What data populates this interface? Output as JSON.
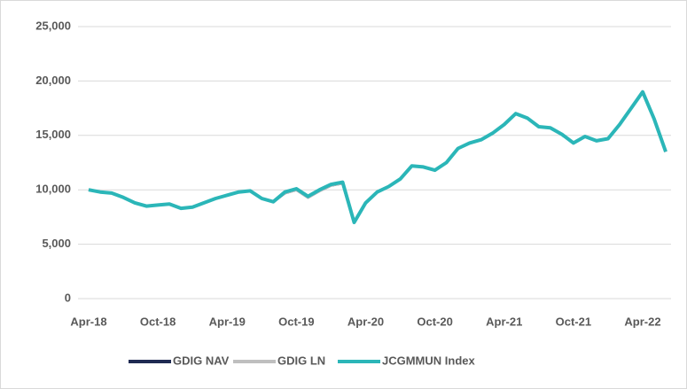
{
  "chart_data": {
    "type": "line",
    "categories": [
      "Apr-18",
      null,
      null,
      null,
      null,
      null,
      "Oct-18",
      null,
      null,
      null,
      null,
      null,
      "Apr-19",
      null,
      null,
      null,
      null,
      null,
      "Oct-19",
      null,
      null,
      null,
      null,
      null,
      "Apr-20",
      null,
      null,
      null,
      null,
      null,
      "Oct-20",
      null,
      null,
      null,
      null,
      null,
      "Apr-21",
      null,
      null,
      null,
      null,
      null,
      "Oct-21",
      null,
      null,
      null,
      null,
      null,
      "Apr-22",
      null,
      null
    ],
    "series": [
      {
        "name": "GDIG NAV",
        "color": "#1f2a52",
        "values": [
          10000,
          9800,
          9700,
          9300,
          8800,
          8500,
          8600,
          8700,
          8300,
          8400,
          8800,
          9200,
          9500,
          9800,
          9900,
          9200,
          8900,
          9700,
          10000,
          9300,
          9900,
          10400,
          10600,
          7000,
          8800,
          9800,
          10300,
          11000,
          12200,
          12100,
          11800,
          12500,
          13800,
          14300,
          14600,
          15200,
          16000,
          17000,
          16600,
          15800,
          15700,
          15100,
          14300,
          14900,
          14500,
          14700,
          16000,
          17500,
          19000,
          16500,
          13500
        ]
      },
      {
        "name": "GDIG LN",
        "color": "#bfbfbf",
        "values": [
          10000,
          9800,
          9700,
          9300,
          8800,
          8500,
          8600,
          8700,
          8300,
          8400,
          8800,
          9200,
          9500,
          9800,
          9900,
          9200,
          8900,
          9700,
          10000,
          9300,
          9900,
          10400,
          10600,
          7000,
          8800,
          9800,
          10300,
          11000,
          12200,
          12100,
          11800,
          12500,
          13800,
          14300,
          14600,
          15200,
          16000,
          17000,
          16600,
          15800,
          15700,
          15100,
          14300,
          14900,
          14500,
          14700,
          16000,
          17500,
          19000,
          16500,
          13500
        ]
      },
      {
        "name": "JCGMMUN Index",
        "color": "#2bb6b8",
        "values": [
          10000,
          9800,
          9700,
          9300,
          8800,
          8500,
          8600,
          8700,
          8300,
          8400,
          8800,
          9200,
          9500,
          9800,
          9900,
          9200,
          8900,
          9800,
          10100,
          9400,
          10000,
          10500,
          10700,
          7000,
          8800,
          9800,
          10300,
          11000,
          12200,
          12100,
          11800,
          12500,
          13800,
          14300,
          14600,
          15200,
          16000,
          17000,
          16600,
          15800,
          15700,
          15100,
          14300,
          14900,
          14500,
          14700,
          16000,
          17500,
          19000,
          16500,
          13500
        ]
      }
    ],
    "ylim": [
      0,
      25000
    ],
    "yticks": [
      0,
      {
        "value": 5000,
        "label": "5,000"
      },
      {
        "value": 10000,
        "label": "10,000"
      },
      {
        "value": 15000,
        "label": "15,000"
      },
      {
        "value": 20000,
        "label": "20,000"
      },
      {
        "value": 25000,
        "label": "25,000"
      }
    ],
    "grid": true,
    "legend": "bottom"
  }
}
